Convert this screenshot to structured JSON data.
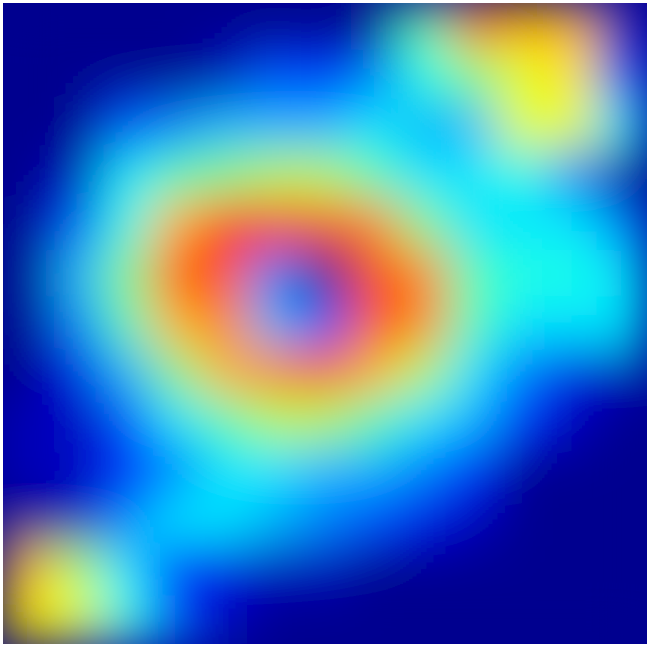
{
  "image": {
    "kind": "heatmap",
    "colormap": "jet",
    "colormap_stops": [
      "#00008f",
      "#0000ff",
      "#0080ff",
      "#00ffff",
      "#80ff80",
      "#ffff00",
      "#ff8000",
      "#ff0000",
      "#800000"
    ],
    "background_color": "#00008f",
    "frame_color": "#ffffff",
    "axes_visible": false,
    "colorbar_visible": false
  },
  "chart_data": {
    "type": "heatmap",
    "title": "",
    "xlabel": "",
    "ylabel": "",
    "grid": false,
    "legend": "none",
    "value_range": [
      0,
      1
    ],
    "grid_size": [
      13,
      13
    ],
    "values": [
      [
        0.0,
        0.0,
        0.0,
        0.0,
        0.0,
        0.0,
        0.0,
        0.0,
        0.45,
        0.75,
        0.7,
        0.7,
        0.05
      ],
      [
        0.0,
        0.0,
        0.0,
        0.0,
        0.05,
        0.2,
        0.15,
        0.25,
        0.4,
        0.5,
        0.6,
        0.65,
        0.2
      ],
      [
        0.0,
        0.0,
        0.2,
        0.25,
        0.3,
        0.3,
        0.3,
        0.35,
        0.3,
        0.3,
        0.6,
        0.6,
        0.35
      ],
      [
        0.0,
        0.05,
        0.35,
        0.45,
        0.5,
        0.55,
        0.55,
        0.45,
        0.35,
        0.35,
        0.4,
        0.25,
        0.0
      ],
      [
        0.0,
        0.2,
        0.4,
        0.7,
        0.85,
        0.85,
        0.8,
        0.75,
        0.5,
        0.35,
        0.35,
        0.35,
        0.25
      ],
      [
        0.0,
        0.3,
        0.5,
        0.8,
        0.8,
        0.25,
        0.0,
        0.8,
        0.75,
        0.45,
        0.4,
        0.4,
        0.35
      ],
      [
        0.0,
        0.25,
        0.45,
        0.7,
        0.75,
        0.3,
        0.2,
        0.8,
        0.75,
        0.45,
        0.35,
        0.35,
        0.35
      ],
      [
        0.0,
        0.1,
        0.3,
        0.5,
        0.7,
        0.75,
        0.8,
        0.7,
        0.55,
        0.35,
        0.25,
        0.1,
        0.05
      ],
      [
        0.05,
        0.05,
        0.2,
        0.35,
        0.45,
        0.55,
        0.55,
        0.45,
        0.35,
        0.3,
        0.15,
        0.05,
        0.0
      ],
      [
        0.05,
        0.05,
        0.15,
        0.25,
        0.35,
        0.35,
        0.3,
        0.3,
        0.25,
        0.15,
        0.0,
        0.0,
        0.0
      ],
      [
        0.0,
        0.05,
        0.25,
        0.35,
        0.35,
        0.3,
        0.25,
        0.2,
        0.1,
        0.05,
        0.0,
        0.0,
        0.0
      ],
      [
        0.7,
        0.55,
        0.35,
        0.15,
        0.1,
        0.05,
        0.05,
        0.0,
        0.0,
        0.0,
        0.0,
        0.0,
        0.0
      ],
      [
        0.65,
        0.6,
        0.4,
        0.2,
        0.05,
        0.0,
        0.0,
        0.0,
        0.0,
        0.0,
        0.0,
        0.0,
        0.0
      ]
    ]
  }
}
